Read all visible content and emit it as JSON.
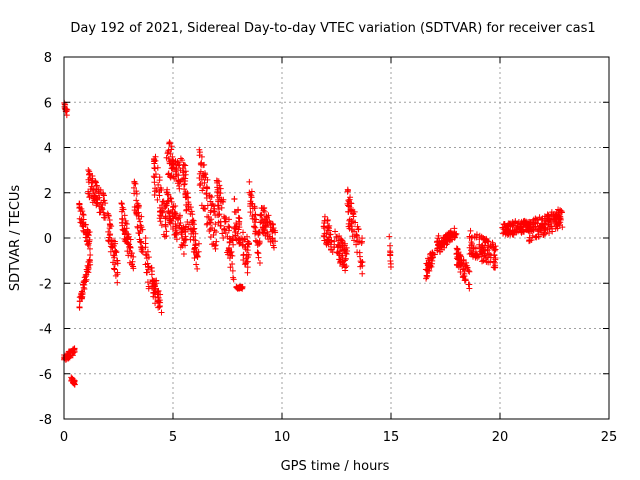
{
  "chart_data": {
    "type": "scatter",
    "title": "Day 192 of 2021, Sidereal Day-to-day VTEC variation (SDTVAR) for receiver cas1",
    "xlabel": "GPS time / hours",
    "ylabel": "SDTVAR / TECUs",
    "xlim": [
      0,
      25
    ],
    "ylim": [
      -8,
      8
    ],
    "xticks": [
      "0",
      "5",
      "10",
      "15",
      "20",
      "25"
    ],
    "yticks": [
      "8",
      "6",
      "4",
      "2",
      "0",
      "-2",
      "-4",
      "-6",
      "-8"
    ],
    "grid": true,
    "marker": "+",
    "color": "#ff0000",
    "segments": [
      {
        "x_start": 0.0,
        "x_end": 0.15,
        "y_start": 6.0,
        "y_end": 5.5,
        "spread": 0.3
      },
      {
        "x_start": 0.0,
        "x_end": 0.5,
        "y_start": -5.3,
        "y_end": -5.0,
        "spread": 0.3
      },
      {
        "x_start": 0.3,
        "x_end": 0.5,
        "y_start": -6.2,
        "y_end": -6.4,
        "spread": 0.2
      },
      {
        "x_start": 0.7,
        "x_end": 1.2,
        "y_start": -2.9,
        "y_end": -1.0,
        "spread": 0.5
      },
      {
        "x_start": 0.7,
        "x_end": 1.2,
        "y_start": 1.2,
        "y_end": -0.2,
        "spread": 0.8
      },
      {
        "x_start": 1.1,
        "x_end": 1.9,
        "y_start": 2.5,
        "y_end": 1.2,
        "spread": 1.2
      },
      {
        "x_start": 2.0,
        "x_end": 2.5,
        "y_start": 0.5,
        "y_end": -1.5,
        "spread": 1.4
      },
      {
        "x_start": 2.6,
        "x_end": 3.2,
        "y_start": 1.2,
        "y_end": -1.2,
        "spread": 1.2
      },
      {
        "x_start": 3.2,
        "x_end": 3.9,
        "y_start": 2.0,
        "y_end": -1.5,
        "spread": 1.6
      },
      {
        "x_start": 4.0,
        "x_end": 4.5,
        "y_start": -1.8,
        "y_end": -3.2,
        "spread": 1.2
      },
      {
        "x_start": 4.1,
        "x_end": 4.7,
        "y_start": 3.0,
        "y_end": 0.5,
        "spread": 2.0
      },
      {
        "x_start": 4.7,
        "x_end": 5.6,
        "y_start": 3.7,
        "y_end": 2.5,
        "spread": 1.6
      },
      {
        "x_start": 4.7,
        "x_end": 5.6,
        "y_start": 1.5,
        "y_end": -0.2,
        "spread": 1.4
      },
      {
        "x_start": 5.6,
        "x_end": 6.2,
        "y_start": 1.5,
        "y_end": -1.0,
        "spread": 1.6
      },
      {
        "x_start": 6.2,
        "x_end": 7.0,
        "y_start": 3.0,
        "y_end": 0.0,
        "spread": 2.2
      },
      {
        "x_start": 7.0,
        "x_end": 7.8,
        "y_start": 2.0,
        "y_end": -1.0,
        "spread": 2.0
      },
      {
        "x_start": 7.9,
        "x_end": 8.2,
        "y_start": -2.2,
        "y_end": -2.2,
        "spread": 0.1
      },
      {
        "x_start": 7.8,
        "x_end": 8.5,
        "y_start": 1.0,
        "y_end": -1.0,
        "spread": 1.6
      },
      {
        "x_start": 8.5,
        "x_end": 9.0,
        "y_start": 2.0,
        "y_end": -0.6,
        "spread": 1.4
      },
      {
        "x_start": 9.0,
        "x_end": 9.7,
        "y_start": 1.0,
        "y_end": 0.0,
        "spread": 1.2
      },
      {
        "x_start": 11.9,
        "x_end": 13.0,
        "y_start": 0.5,
        "y_end": -1.0,
        "spread": 1.2
      },
      {
        "x_start": 13.0,
        "x_end": 13.7,
        "y_start": 1.5,
        "y_end": -1.0,
        "spread": 1.8
      },
      {
        "x_start": 14.9,
        "x_end": 15.0,
        "y_start": 0.4,
        "y_end": -1.3,
        "spread": 0.4
      },
      {
        "x_start": 16.6,
        "x_end": 17.2,
        "y_start": -1.5,
        "y_end": -0.2,
        "spread": 0.8
      },
      {
        "x_start": 17.2,
        "x_end": 18.0,
        "y_start": -0.4,
        "y_end": 0.3,
        "spread": 0.5
      },
      {
        "x_start": 18.0,
        "x_end": 18.6,
        "y_start": -0.8,
        "y_end": -1.8,
        "spread": 0.9
      },
      {
        "x_start": 18.6,
        "x_end": 19.8,
        "y_start": -0.2,
        "y_end": -0.8,
        "spread": 1.1
      },
      {
        "x_start": 20.1,
        "x_end": 21.3,
        "y_start": 0.3,
        "y_end": 0.6,
        "spread": 0.6
      },
      {
        "x_start": 21.3,
        "x_end": 22.9,
        "y_start": 0.3,
        "y_end": 0.9,
        "spread": 0.9
      }
    ]
  }
}
